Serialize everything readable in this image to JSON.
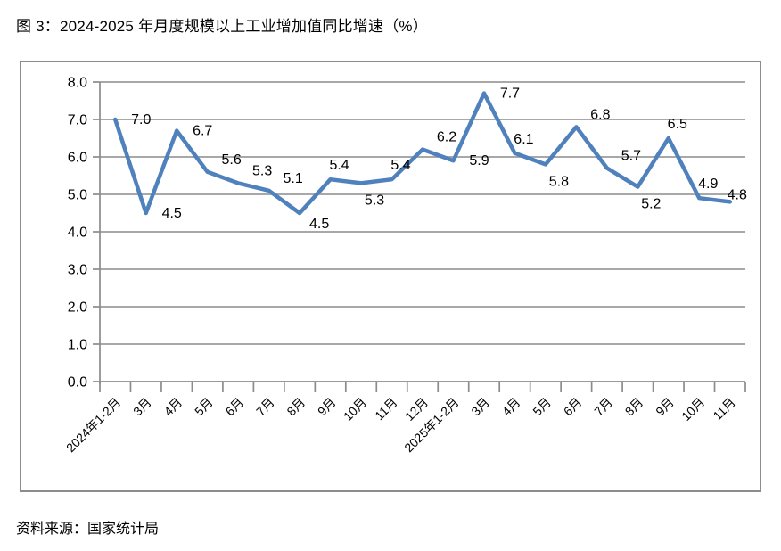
{
  "figure": {
    "title": "图 3：2024-2025 年月度规模以上工业增加值同比增速（%）",
    "source_note": "资料来源：国家统计局"
  },
  "chart_data": {
    "type": "line",
    "title": "2024-2025 年月度规模以上工业增加值同比增速（%）",
    "categories": [
      "2024年1-2月",
      "3月",
      "4月",
      "5月",
      "6月",
      "7月",
      "8月",
      "9月",
      "10月",
      "11月",
      "12月",
      "2025年1-2月",
      "3月",
      "4月",
      "5月",
      "6月",
      "7月",
      "8月",
      "9月",
      "10月",
      "11月"
    ],
    "values": [
      7.0,
      4.5,
      6.7,
      5.6,
      5.3,
      5.1,
      4.5,
      5.4,
      5.3,
      5.4,
      6.2,
      5.9,
      7.7,
      6.1,
      5.8,
      6.8,
      5.7,
      5.2,
      6.5,
      4.9,
      4.8
    ],
    "xlabel": "",
    "ylabel": "",
    "ylim": [
      0.0,
      8.0
    ],
    "ytick_step": 1.0,
    "ytick_labels": [
      "0.0",
      "1.0",
      "2.0",
      "3.0",
      "4.0",
      "5.0",
      "6.0",
      "7.0",
      "8.0"
    ],
    "grid": true,
    "legend": "none",
    "line_color": "#4F81BD",
    "axis_color": "#8C8C8C",
    "grid_color": "#9B9B9B",
    "label_positions": [
      "right",
      "right",
      "right",
      "above-right",
      "above-right",
      "above-right",
      "below-right",
      "above",
      "below",
      "above",
      "above-right",
      "right",
      "right",
      "above",
      "below",
      "above-right",
      "above-right",
      "below",
      "above",
      "above",
      "end"
    ]
  }
}
